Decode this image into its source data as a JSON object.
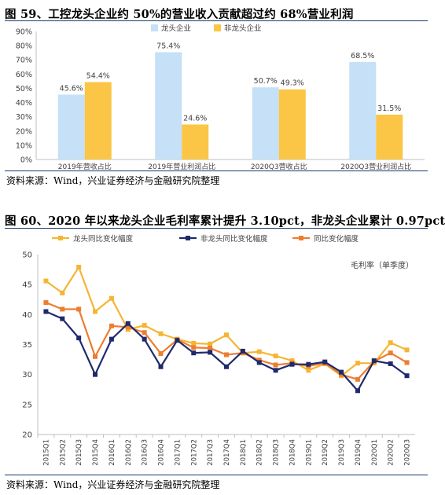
{
  "figure1": {
    "title": "图 59、工控龙头企业约 50%的营业收入贡献超过约 68%营业利润",
    "source": "资料来源：Wind，兴业证券经济与金融研究院整理"
  },
  "figure2": {
    "title": "图 60、2020 年以来龙头企业毛利率累计提升 3.10pct，非龙头企业累计 0.97pct",
    "source": "资料来源：Wind，兴业证券经济与金融研究院整理"
  },
  "chart_data": [
    {
      "type": "bar",
      "categories": [
        "2019年营收占比",
        "2019年营业利润占比",
        "2020Q3营收占比",
        "2020Q3营业利润占比"
      ],
      "series": [
        {
          "name": "龙头企业",
          "color": "#c5e0f7",
          "values": [
            45.6,
            75.4,
            50.7,
            68.5
          ]
        },
        {
          "name": "非龙头企业",
          "color": "#fbc646",
          "values": [
            54.4,
            24.6,
            49.3,
            31.5
          ]
        }
      ],
      "data_labels": {
        "龙头企业": [
          "45.6%",
          "75.4%",
          "50.7%",
          "68.5%"
        ],
        "非龙头企业": [
          "54.4%",
          "24.6%",
          "49.3%",
          "31.5%"
        ]
      },
      "ylim": [
        0,
        90
      ],
      "yticks": [
        "0%",
        "10%",
        "20%",
        "30%",
        "40%",
        "50%",
        "60%",
        "70%",
        "80%",
        "90%"
      ],
      "legend": "top-center",
      "grid": false
    },
    {
      "type": "line",
      "x": [
        "2015Q1",
        "2015Q2",
        "2015Q3",
        "2015Q4",
        "2016Q1",
        "2016Q2",
        "2016Q3",
        "2016Q4",
        "2017Q1",
        "2017Q2",
        "2017Q3",
        "2017Q4",
        "2018Q1",
        "2018Q2",
        "2018Q3",
        "2018Q4",
        "2019Q1",
        "2019Q2",
        "2019Q3",
        "2019Q4",
        "2020Q1",
        "2020Q2",
        "2020Q3"
      ],
      "series": [
        {
          "name": "龙头同比变化幅度",
          "color": "#f5b533",
          "values": [
            45.6,
            43.6,
            47.9,
            40.5,
            42.7,
            37.5,
            38.2,
            36.8,
            35.9,
            35.2,
            35.1,
            36.6,
            33.6,
            33.8,
            33.1,
            32.3,
            30.7,
            31.8,
            29.8,
            31.9,
            31.9,
            35.3,
            34.1
          ]
        },
        {
          "name": "非龙头同比变化幅度",
          "color": "#1f2a6b",
          "values": [
            40.5,
            39.3,
            36.1,
            30.0,
            35.9,
            38.5,
            35.9,
            31.3,
            35.7,
            33.6,
            33.7,
            31.3,
            33.9,
            32.0,
            30.7,
            31.7,
            31.7,
            32.1,
            30.4,
            27.3,
            32.3,
            31.8,
            29.8
          ]
        },
        {
          "name": "同比变化幅度",
          "color": "#ed7d31",
          "values": [
            42.0,
            40.9,
            40.9,
            33.0,
            38.1,
            37.9,
            37.0,
            33.5,
            35.8,
            34.5,
            34.4,
            33.3,
            33.6,
            32.4,
            31.6,
            31.9,
            31.4,
            31.9,
            30.0,
            29.2,
            32.2,
            33.6,
            32.0
          ]
        }
      ],
      "ylabel": "毛利率（单季度）",
      "ylim": [
        20,
        50
      ],
      "yticks": [
        "20",
        "25",
        "30",
        "35",
        "40",
        "45",
        "50"
      ],
      "legend": "top",
      "grid": false
    }
  ]
}
